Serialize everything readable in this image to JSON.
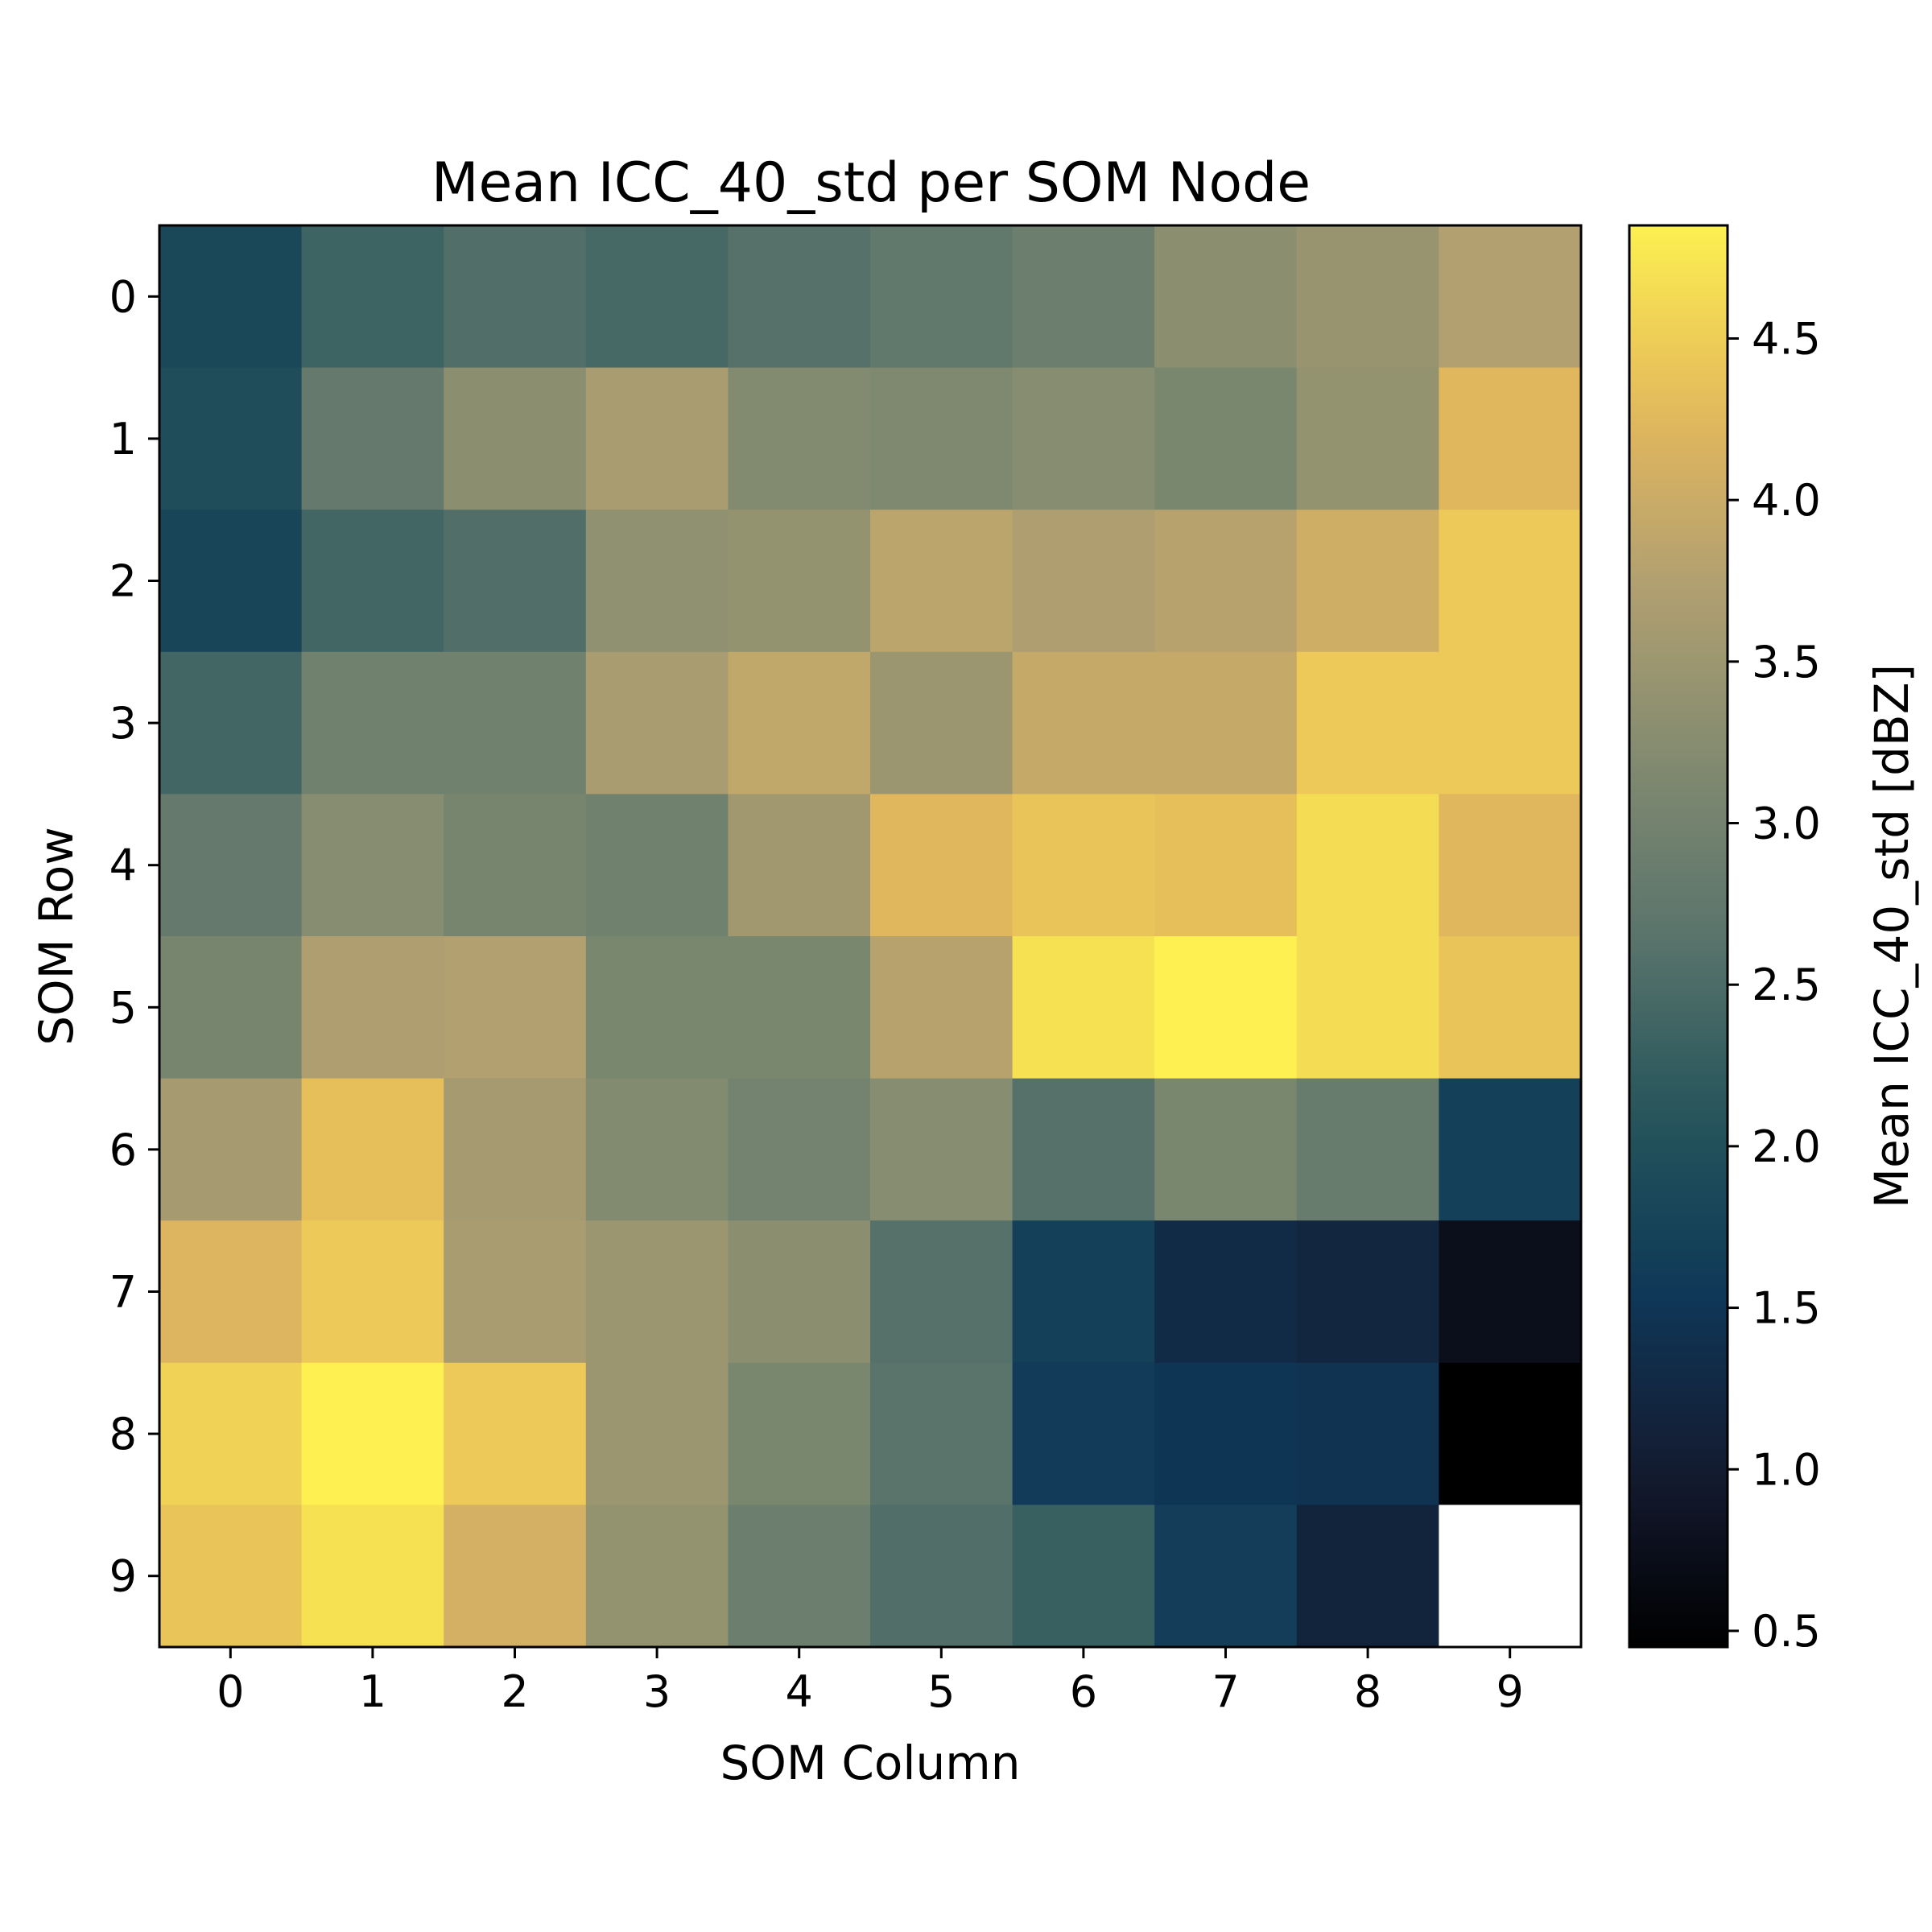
{
  "chart_data": {
    "type": "heatmap",
    "title": "Mean ICC_40_std per SOM Node",
    "xlabel": "SOM Column",
    "ylabel": "SOM Row",
    "colorbar_label": "Mean ICC_40_std [dBZ]",
    "colormap": "cividis-like",
    "x_categories": [
      "0",
      "1",
      "2",
      "3",
      "4",
      "5",
      "6",
      "7",
      "8",
      "9"
    ],
    "y_categories": [
      "0",
      "1",
      "2",
      "3",
      "4",
      "5",
      "6",
      "7",
      "8",
      "9"
    ],
    "color_range": [
      0.45,
      4.85
    ],
    "colorbar_ticks": [
      "0.5",
      "1.0",
      "1.5",
      "2.0",
      "2.5",
      "3.0",
      "3.5",
      "4.0",
      "4.5"
    ],
    "values": [
      [
        1.85,
        2.35,
        2.55,
        2.45,
        2.6,
        2.75,
        2.9,
        3.3,
        3.45,
        3.75
      ],
      [
        1.95,
        2.8,
        3.3,
        3.65,
        3.2,
        3.15,
        3.25,
        3.1,
        3.4,
        4.25
      ],
      [
        1.8,
        2.4,
        2.55,
        3.35,
        3.4,
        3.85,
        3.7,
        3.8,
        4.05,
        4.45
      ],
      [
        2.4,
        2.95,
        2.95,
        3.65,
        3.9,
        3.5,
        3.95,
        3.95,
        4.45,
        4.45
      ],
      [
        2.8,
        3.25,
        3.05,
        2.95,
        3.55,
        4.25,
        4.4,
        4.35,
        4.65,
        4.25
      ],
      [
        3.05,
        3.7,
        3.75,
        3.1,
        3.1,
        3.8,
        4.7,
        4.85,
        4.65,
        4.4
      ],
      [
        3.6,
        4.35,
        3.6,
        3.2,
        3.0,
        3.25,
        2.6,
        3.1,
        2.85,
        1.7
      ],
      [
        4.2,
        4.45,
        3.65,
        3.5,
        3.3,
        2.6,
        1.7,
        1.3,
        1.2,
        0.75
      ],
      [
        4.55,
        4.85,
        4.45,
        3.5,
        3.1,
        2.65,
        1.6,
        1.5,
        1.45,
        0.45
      ],
      [
        4.4,
        4.7,
        4.1,
        3.4,
        2.9,
        2.55,
        2.3,
        1.65,
        1.15,
        null
      ]
    ]
  }
}
